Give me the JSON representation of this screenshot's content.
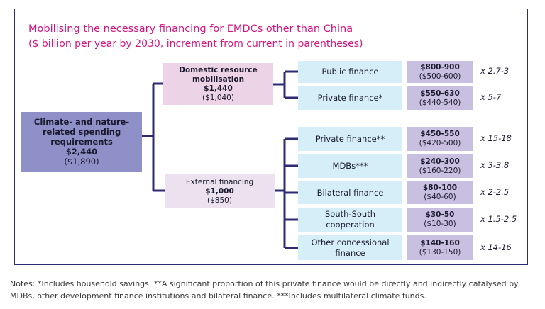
{
  "title": "Mobilising the necessary financing for EMDCs other than China",
  "subtitle": "($ billion per year by 2030, increment from current in parentheses)",
  "root": {
    "name": "Climate- and nature-related spending requirements",
    "value": "$2,440",
    "increment": "($1,890)"
  },
  "domestic": {
    "name": "Domestic resource mobilisation",
    "value": "$1,440",
    "increment": "($1,040)"
  },
  "external": {
    "name": "External financing",
    "value": "$1,000",
    "increment": "($850)"
  },
  "leaves": [
    {
      "label": "Public finance",
      "range": "$800-900",
      "increment": "($500-600)",
      "multiplier": "x 2.7-3"
    },
    {
      "label": "Private finance*",
      "range": "$550-630",
      "increment": "($440-540)",
      "multiplier": "x 5-7"
    },
    {
      "label": "Private finance**",
      "range": "$450-550",
      "increment": "($420-500)",
      "multiplier": "x 15-18"
    },
    {
      "label": "MDBs***",
      "range": "$240-300",
      "increment": "($160-220)",
      "multiplier": "x 3-3.8"
    },
    {
      "label": "Bilateral finance",
      "range": "$80-100",
      "increment": "($40-60)",
      "multiplier": "x 2-2.5"
    },
    {
      "label": "South-South cooperation",
      "range": "$30-50",
      "increment": "($10-30)",
      "multiplier": "x 1.5-2.5"
    },
    {
      "label": "Other concessional finance",
      "range": "$140-160",
      "increment": "($130-150)",
      "multiplier": "x 14-16"
    }
  ],
  "notes": "Notes: *Includes household savings. **A significant proportion of this private finance would be directly and indirectly catalysed by MDBs, other development finance institutions and bilateral finance. ***Includes multilateral climate funds.",
  "colors": {
    "title": "#d4147f",
    "root": "#8f90c8",
    "connector": "#2c2b73",
    "leaf": "#d6eef8",
    "value": "#c9bfe0"
  }
}
